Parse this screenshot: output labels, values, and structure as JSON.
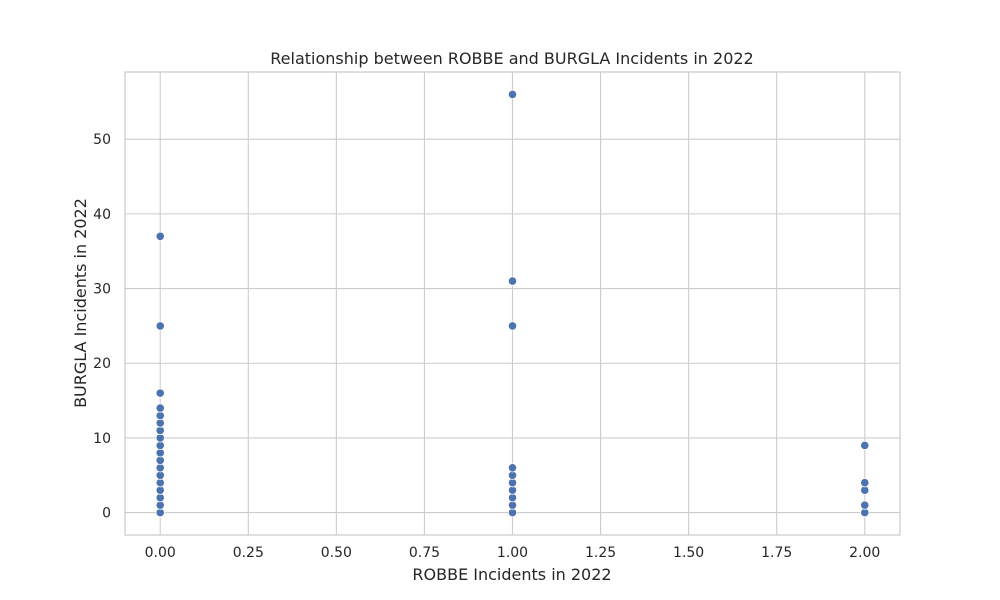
{
  "chart_data": {
    "type": "scatter",
    "title": "Relationship between ROBBE and BURGLA Incidents in 2022",
    "xlabel": "ROBBE Incidents in 2022",
    "ylabel": "BURGLA Incidents in 2022",
    "xlim": [
      -0.1,
      2.1
    ],
    "ylim": [
      -3,
      59
    ],
    "xticks": [
      0.0,
      0.25,
      0.5,
      0.75,
      1.0,
      1.25,
      1.5,
      1.75,
      2.0
    ],
    "xtick_labels": [
      "0.00",
      "0.25",
      "0.50",
      "0.75",
      "1.00",
      "1.25",
      "1.50",
      "1.75",
      "2.00"
    ],
    "yticks": [
      0,
      10,
      20,
      30,
      40,
      50
    ],
    "ytick_labels": [
      "0",
      "10",
      "20",
      "30",
      "40",
      "50"
    ],
    "grid": true,
    "point_color": "#4c72b0",
    "points": [
      {
        "x": 0,
        "y": 0
      },
      {
        "x": 0,
        "y": 1
      },
      {
        "x": 0,
        "y": 2
      },
      {
        "x": 0,
        "y": 3
      },
      {
        "x": 0,
        "y": 4
      },
      {
        "x": 0,
        "y": 5
      },
      {
        "x": 0,
        "y": 6
      },
      {
        "x": 0,
        "y": 7
      },
      {
        "x": 0,
        "y": 8
      },
      {
        "x": 0,
        "y": 9
      },
      {
        "x": 0,
        "y": 10
      },
      {
        "x": 0,
        "y": 11
      },
      {
        "x": 0,
        "y": 12
      },
      {
        "x": 0,
        "y": 13
      },
      {
        "x": 0,
        "y": 14
      },
      {
        "x": 0,
        "y": 16
      },
      {
        "x": 0,
        "y": 25
      },
      {
        "x": 0,
        "y": 37
      },
      {
        "x": 1,
        "y": 0
      },
      {
        "x": 1,
        "y": 1
      },
      {
        "x": 1,
        "y": 2
      },
      {
        "x": 1,
        "y": 3
      },
      {
        "x": 1,
        "y": 4
      },
      {
        "x": 1,
        "y": 5
      },
      {
        "x": 1,
        "y": 6
      },
      {
        "x": 1,
        "y": 25
      },
      {
        "x": 1,
        "y": 31
      },
      {
        "x": 1,
        "y": 56
      },
      {
        "x": 2,
        "y": 0
      },
      {
        "x": 2,
        "y": 1
      },
      {
        "x": 2,
        "y": 3
      },
      {
        "x": 2,
        "y": 4
      },
      {
        "x": 2,
        "y": 9
      }
    ]
  }
}
